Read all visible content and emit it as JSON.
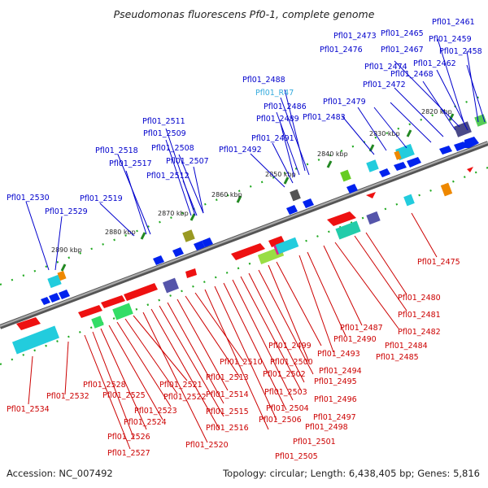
{
  "title": "Pseudomonas fluorescens Pf0-1, complete genome",
  "footer": {
    "accession": "Accession: NC_007492",
    "topology": "Topology: circular; Length: 6,438,405 bp; Genes: 5,816"
  },
  "colors": {
    "forward_label": "#0000cc",
    "reverse_label": "#cc0000",
    "rna_label": "#33aadd",
    "backbone": "#888888",
    "tick": "#228822",
    "forward_gene": "#0022ee",
    "reverse_gene": "#ee1111"
  },
  "tick_labels": [
    "2820 kbp",
    "2830 kbp",
    "2840 kbp",
    "2850 kbp",
    "2860 kbp",
    "2870 kbp",
    "2880 kbp",
    "2890 kbp"
  ],
  "top_labels": [
    "Pfl01_2461",
    "Pfl01_2465",
    "Pfl01_2459",
    "Pfl01_2473",
    "Pfl01_2467",
    "Pfl01_2458",
    "Pfl01_2476",
    "Pfl01_2462",
    "Pfl01_2474",
    "Pfl01_2468",
    "Pfl01_2472",
    "Pfl01_2488",
    "Pfl01_R47",
    "Pfl01_2479",
    "Pfl01_2486",
    "Pfl01_2511",
    "Pfl01_2483",
    "Pfl01_2489",
    "Pfl01_2509",
    "Pfl01_2491",
    "Pfl01_2518",
    "Pfl01_2508",
    "Pfl01_2492",
    "Pfl01_2517",
    "Pfl01_2507",
    "Pfl01_2512",
    "Pfl01_2530",
    "Pfl01_2519",
    "Pfl01_2529"
  ],
  "bottom_labels": [
    "Pfl01_2475",
    "Pfl01_2480",
    "Pfl01_2481",
    "Pfl01_2487",
    "Pfl01_2482",
    "Pfl01_2490",
    "Pfl01_2484",
    "Pfl01_2499",
    "Pfl01_2493",
    "Pfl01_2485",
    "Pfl01_2510",
    "Pfl01_2500",
    "Pfl01_2494",
    "Pfl01_2513",
    "Pfl01_2502",
    "Pfl01_2495",
    "Pfl01_2528",
    "Pfl01_2521",
    "Pfl01_2503",
    "Pfl01_2496",
    "Pfl01_2532",
    "Pfl01_2525",
    "Pfl01_2522",
    "Pfl01_2514",
    "Pfl01_2504",
    "Pfl01_2497",
    "Pfl01_2534",
    "Pfl01_2523",
    "Pfl01_2515",
    "Pfl01_2506",
    "Pfl01_2498",
    "Pfl01_2524",
    "Pfl01_2516",
    "Pfl01_2526",
    "Pfl01_2501",
    "Pfl01_2520",
    "Pfl01_2527",
    "Pfl01_2505"
  ]
}
